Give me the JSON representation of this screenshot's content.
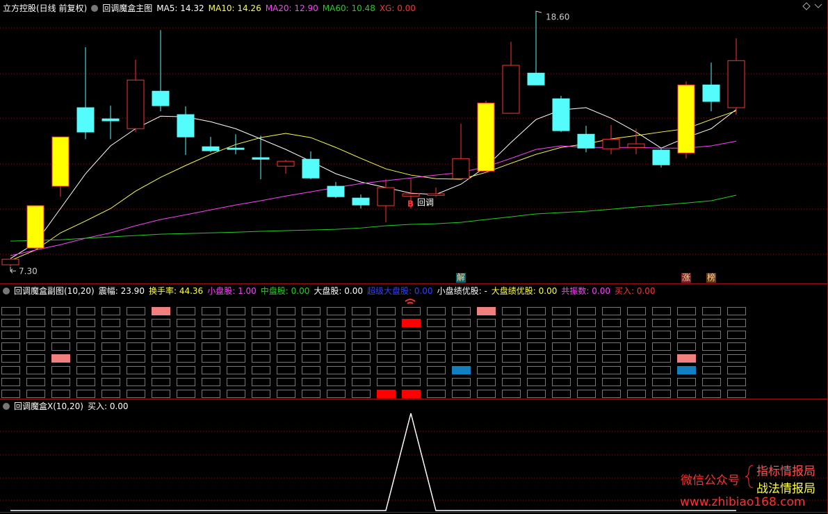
{
  "chart_data": [
    {
      "type": "candlestick",
      "title": "立方控股(日线 前复权)",
      "subtitle": "回调魔盒主图",
      "open": [
        7.36,
        8.11,
        10.88,
        14.4,
        13.9,
        13.46,
        15.14,
        14.09,
        12.65,
        12.59,
        12.16,
        11.78,
        12.09,
        10.88,
        10.35,
        10.01,
        10.44,
        10.47,
        11.22,
        11.56,
        14.15,
        15.95,
        14.8,
        13.21,
        12.56,
        12.62,
        12.5,
        12.37,
        15.42,
        14.4
      ],
      "high": [
        7.61,
        10.01,
        13.09,
        17.11,
        14.49,
        16.55,
        17.88,
        14.46,
        13.09,
        13.21,
        13.15,
        12.06,
        12.44,
        11.07,
        10.51,
        11.19,
        11.19,
        10.82,
        13.68,
        14.71,
        17.35,
        18.6,
        14.93,
        13.59,
        13.62,
        13.46,
        12.62,
        15.58,
        16.42,
        17.51
      ],
      "low": [
        7.3,
        8.01,
        10.41,
        12.99,
        12.99,
        13.31,
        14.24,
        12.28,
        12.4,
        12.31,
        11.19,
        11.44,
        11.19,
        10.35,
        9.88,
        9.26,
        9.88,
        10.41,
        11.19,
        11.47,
        14.15,
        15.42,
        13.31,
        12.4,
        12.31,
        12.31,
        11.72,
        12.12,
        14.24,
        14.09
      ],
      "close": [
        7.61,
        10.01,
        13.09,
        13.31,
        13.81,
        15.64,
        14.49,
        13.09,
        12.47,
        12.53,
        12.09,
        12.0,
        11.25,
        10.41,
        10.04,
        10.82,
        10.54,
        10.54,
        12.12,
        14.61,
        16.3,
        15.42,
        13.37,
        12.59,
        12.99,
        12.78,
        11.84,
        15.42,
        14.68,
        16.51
      ],
      "colors": [
        "#000000",
        "#ffff00",
        "#ffff00",
        "#54fcfc",
        "#54fcfc",
        "#000000",
        "#54fcfc",
        "#54fcfc",
        "#54fcfc",
        "#54fcfc",
        "#54fcfc",
        "#000000",
        "#54fcfc",
        "#54fcfc",
        "#54fcfc",
        "#000000",
        "#000000",
        "#000000",
        "#000000",
        "#ffff00",
        "#000000",
        "#54fcfc",
        "#54fcfc",
        "#54fcfc",
        "#000000",
        "#000000",
        "#54fcfc",
        "#ffff00",
        "#54fcfc",
        "#000000"
      ],
      "up_color": "#ff3232",
      "down_color": "#54fcfc",
      "series": [
        {
          "name": "MA5:",
          "label": "14.32",
          "color": "#ffffff",
          "values": [
            7.64,
            8.33,
            9.88,
            11.44,
            12.69,
            13.46,
            14.02,
            13.99,
            13.77,
            13.46,
            13.0,
            12.53,
            12.0,
            11.44,
            11.07,
            10.82,
            10.57,
            10.51,
            10.97,
            11.75,
            12.84,
            13.87,
            14.3,
            14.4,
            13.93,
            13.31,
            12.59,
            13.06,
            13.46,
            14.32
          ]
        },
        {
          "name": "MA10:",
          "label": "14.26",
          "color": "#ffff40",
          "values": [
            7.55,
            8.02,
            8.79,
            9.32,
            9.88,
            10.66,
            11.28,
            11.81,
            12.31,
            12.75,
            13.06,
            13.25,
            13.06,
            12.62,
            12.13,
            11.66,
            11.38,
            11.22,
            11.19,
            11.5,
            11.91,
            12.31,
            12.62,
            12.78,
            13.0,
            13.15,
            13.31,
            13.46,
            13.87,
            14.26
          ]
        },
        {
          "name": "MA20:",
          "label": "12.90",
          "color": "#ff40ff",
          "values": [
            7.77,
            8.02,
            8.26,
            8.55,
            8.79,
            9.11,
            9.39,
            9.6,
            9.82,
            10.04,
            10.23,
            10.44,
            10.63,
            10.82,
            11.0,
            11.13,
            11.25,
            11.38,
            11.5,
            11.75,
            12.13,
            12.53,
            12.69,
            12.62,
            12.62,
            12.62,
            12.59,
            12.59,
            12.69,
            12.9
          ]
        },
        {
          "name": "MA60:",
          "label": "10.48",
          "color": "#20d020",
          "values": [
            8.42,
            8.45,
            8.48,
            8.55,
            8.61,
            8.67,
            8.73,
            8.76,
            8.79,
            8.82,
            8.86,
            8.89,
            8.92,
            8.95,
            9.01,
            9.11,
            9.17,
            9.2,
            9.26,
            9.39,
            9.51,
            9.64,
            9.7,
            9.76,
            9.85,
            9.95,
            10.04,
            10.13,
            10.23,
            10.48
          ]
        }
      ],
      "header_items": [
        {
          "name": "XG:",
          "label": "0.00",
          "color": "#ff3232"
        }
      ],
      "ylim": [
        6.93,
        18.76
      ],
      "max_label": "18.60",
      "min_label": "7.30",
      "signal_labels": [
        null,
        null,
        null,
        null,
        null,
        null,
        null,
        null,
        null,
        null,
        null,
        null,
        null,
        null,
        null,
        null,
        "B",
        null,
        null,
        null,
        null,
        null,
        null,
        null,
        null,
        null,
        null,
        null,
        null,
        null
      ],
      "signal_notes": [
        null,
        null,
        null,
        null,
        null,
        null,
        null,
        null,
        null,
        null,
        null,
        null,
        null,
        null,
        null,
        null,
        "回调",
        null,
        null,
        null,
        null,
        null,
        null,
        null,
        null,
        null,
        null,
        null,
        null,
        null
      ],
      "bottom_labels": [
        null,
        null,
        null,
        null,
        null,
        null,
        null,
        null,
        null,
        null,
        null,
        null,
        null,
        null,
        null,
        null,
        null,
        null,
        {
          "text": "解",
          "color": "#006870"
        },
        null,
        null,
        null,
        null,
        null,
        null,
        null,
        null,
        {
          "text": "涨",
          "color": "#802030"
        },
        {
          "text": "榜",
          "color": "#6a3a10"
        },
        null
      ]
    },
    {
      "type": "grid",
      "title": "回调魔盒副图(10,20)",
      "header_items": [
        {
          "name": "震幅:",
          "label": "23.90",
          "color": "#ffffff"
        },
        {
          "name": "换手率:",
          "label": "44.36",
          "color": "#ffff40"
        },
        {
          "name": "小盘股:",
          "label": "1.00",
          "color": "#ff40ff"
        },
        {
          "name": "中盘股:",
          "label": "0.00",
          "color": "#20d020"
        },
        {
          "name": "大盘股:",
          "label": "0.00",
          "color": "#ffffff"
        },
        {
          "name": "超级大盘股:",
          "label": "0.00",
          "color": "#3040ff"
        },
        {
          "name": "小盘绩优股:",
          "label": "-",
          "color": "#ffffff"
        },
        {
          "name": "大盘绩优股:",
          "label": "0.00",
          "color": "#ffff40"
        },
        {
          "name": "共振数:",
          "label": "0.00",
          "color": "#ff40ff"
        },
        {
          "name": "买入:",
          "label": "0.00",
          "color": "#ff3232"
        }
      ],
      "columns": 30,
      "rows": [
        {
          "color": "#f08080",
          "filled": [
            6,
            19
          ]
        },
        {
          "color": "#ff0000",
          "filled": [
            16
          ]
        },
        {
          "filled": []
        },
        {
          "filled": []
        },
        {
          "color": "#f08080",
          "filled": [
            2,
            27
          ]
        },
        {
          "color": "#1080c0",
          "filled": [
            18,
            27
          ]
        },
        {
          "filled": []
        },
        {
          "color": "#ff0000",
          "filled": [
            15,
            16
          ]
        }
      ]
    },
    {
      "type": "line",
      "title": "回调魔盒X(10,20)",
      "header_items": [
        {
          "name": "买入:",
          "label": "0.00",
          "color": "#ffffff"
        }
      ],
      "color": "#ffffff",
      "ylim": [
        0,
        1
      ],
      "values": [
        0,
        0,
        0,
        0,
        0,
        0,
        0,
        0,
        0,
        0,
        0,
        0,
        0,
        0,
        0,
        0,
        1,
        0,
        0,
        0,
        0,
        0,
        0,
        0,
        0,
        0,
        0,
        0,
        0,
        0
      ]
    }
  ],
  "watermark": {
    "label": "微信公众号",
    "lines": [
      "指标情报局",
      "战法情报局"
    ],
    "url": "www.zhibiao168.com"
  }
}
